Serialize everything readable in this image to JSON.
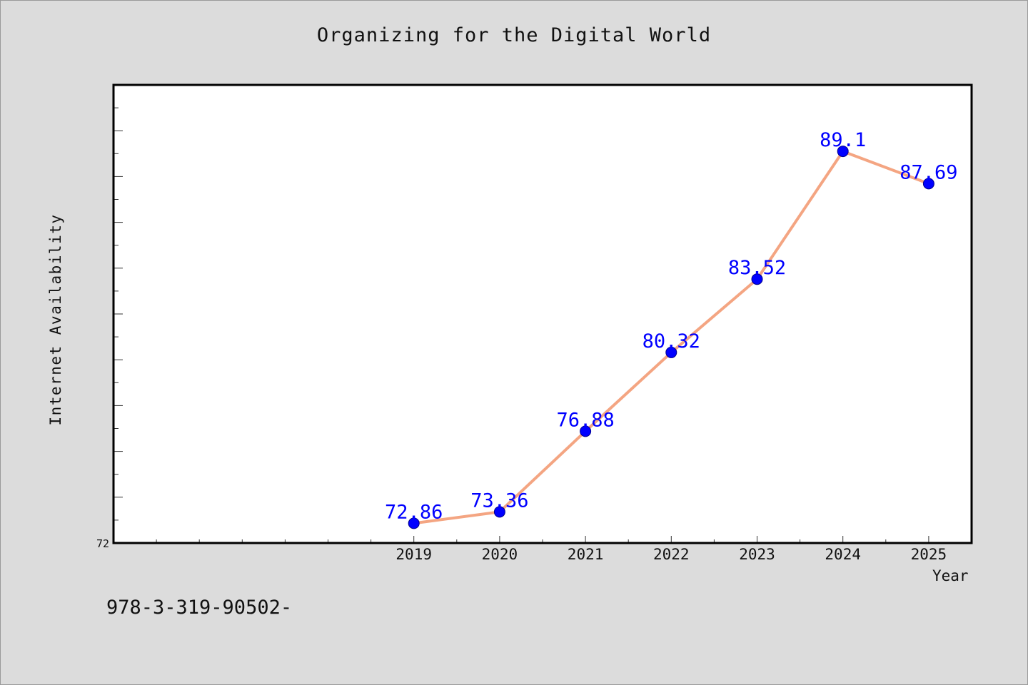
{
  "chart_data": {
    "type": "line",
    "title": "Organizing for the Digital World",
    "xlabel": "Year",
    "ylabel": "Internet Availability",
    "x": [
      2019,
      2020,
      2021,
      2022,
      2023,
      2024,
      2025
    ],
    "xticklabels": [
      "2019",
      "2020",
      "2021",
      "2022",
      "2023",
      "2024",
      "2025"
    ],
    "xlim": [
      2015.5,
      2025.5
    ],
    "ylim": [
      72,
      92
    ],
    "yticklabels": [
      "72"
    ],
    "series": [
      {
        "values": [
          72.86,
          73.36,
          76.88,
          80.32,
          83.52,
          89.1,
          87.69
        ],
        "labels": [
          "72.86",
          "73.36",
          "76.88",
          "80.32",
          "83.52",
          "89.1",
          "87.69"
        ],
        "line_color": "#f4a582",
        "marker_color": "#0000ff",
        "label_color": "#0000ff"
      }
    ],
    "grid": false,
    "legend": "none",
    "background": "#dcdcdc",
    "plot_background": "#ffffff"
  },
  "footnote": "978-3-319-90502-"
}
